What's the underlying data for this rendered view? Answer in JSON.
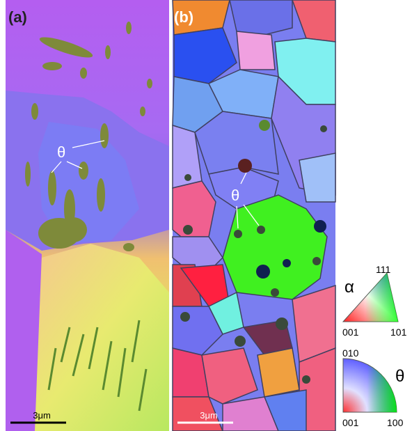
{
  "panels": [
    {
      "label": "(a)",
      "annotation": "θ",
      "scale_bar": "3μm"
    },
    {
      "label": "(b)",
      "annotation": "θ",
      "scale_bar": "3μm"
    }
  ],
  "legends": [
    {
      "symbol": "α",
      "corners": [
        "111",
        "001",
        "101"
      ]
    },
    {
      "symbol": "θ",
      "corners": [
        "010",
        "001",
        "100"
      ]
    }
  ]
}
